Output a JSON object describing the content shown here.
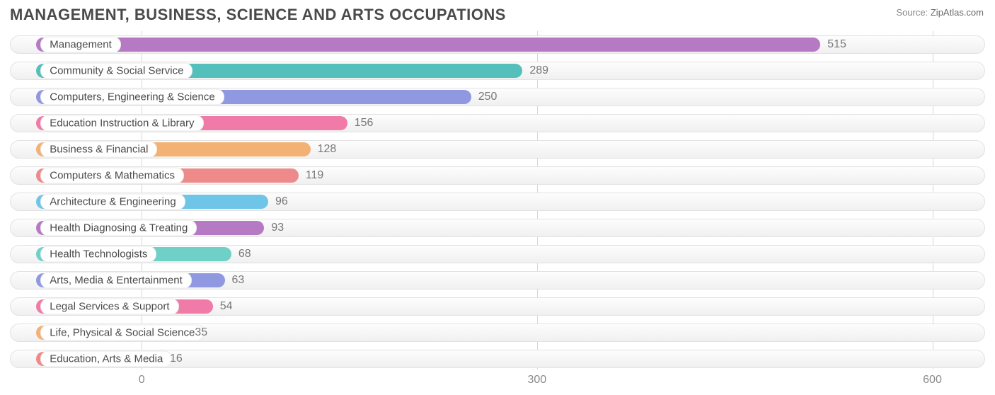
{
  "title": "MANAGEMENT, BUSINESS, SCIENCE AND ARTS OCCUPATIONS",
  "source_label": "Source:",
  "source_site": "ZipAtlas.com",
  "chart": {
    "type": "bar-horizontal",
    "x_min": -100,
    "x_max": 640,
    "x_ticks": [
      0,
      300,
      600
    ],
    "grid_color": "#d6d6d6",
    "track_bg_top": "#fdfdfd",
    "track_bg_bottom": "#f0f0f0",
    "track_border": "#e2e2e2",
    "label_pill_bg": "#ffffff",
    "label_pill_border": "#eaeaea",
    "label_fontsize": 15,
    "value_fontsize": 16,
    "value_color": "#777777",
    "title_color": "#4a4a4a",
    "title_fontsize": 22,
    "bar_start": -80,
    "series": [
      {
        "label": "Management",
        "value": 515,
        "color": "#b679c4"
      },
      {
        "label": "Community & Social Service",
        "value": 289,
        "color": "#55bfbb"
      },
      {
        "label": "Computers, Engineering & Science",
        "value": 250,
        "color": "#8f98e0"
      },
      {
        "label": "Education Instruction & Library",
        "value": 156,
        "color": "#f07ba8"
      },
      {
        "label": "Business & Financial",
        "value": 128,
        "color": "#f3b274"
      },
      {
        "label": "Computers & Mathematics",
        "value": 119,
        "color": "#ef8a8a"
      },
      {
        "label": "Architecture & Engineering",
        "value": 96,
        "color": "#6fc5e8"
      },
      {
        "label": "Health Diagnosing & Treating",
        "value": 93,
        "color": "#b679c4"
      },
      {
        "label": "Health Technologists",
        "value": 68,
        "color": "#6fd0c8"
      },
      {
        "label": "Arts, Media & Entertainment",
        "value": 63,
        "color": "#8f98e0"
      },
      {
        "label": "Legal Services & Support",
        "value": 54,
        "color": "#f07ba8"
      },
      {
        "label": "Life, Physical & Social Science",
        "value": 35,
        "color": "#f3b274"
      },
      {
        "label": "Education, Arts & Media",
        "value": 16,
        "color": "#ef8a8a"
      }
    ]
  }
}
